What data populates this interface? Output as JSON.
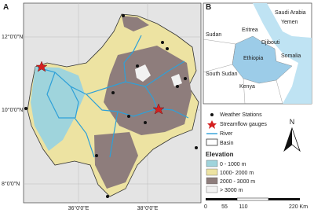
{
  "panel_a": {
    "label": "A",
    "lat_labels": [
      "12°0'0\"N",
      "10°0'0\"N",
      "8°0'0\"N"
    ],
    "lon_labels": [
      "36°0'0\"E",
      "38°0'0\"E"
    ]
  },
  "panel_b": {
    "label": "B",
    "countries": [
      "Sudan",
      "Eritrea",
      "Saudi Arabia",
      "Yemen",
      "Djibouti",
      "Ethiopia",
      "Somalia",
      "South Sudan",
      "Kenya"
    ]
  },
  "legend": {
    "items": [
      "Weather Stations",
      "Streamflow gauges",
      "River",
      "Basin"
    ],
    "elevation_title": "Elevation",
    "elevation_classes": [
      "0 - 1000 m",
      "1000- 2000 m",
      "2000 - 3000 m",
      "> 3000 m"
    ]
  },
  "north": "N",
  "scale_labels": [
    "0",
    "55",
    "110",
    "220 Km"
  ]
}
